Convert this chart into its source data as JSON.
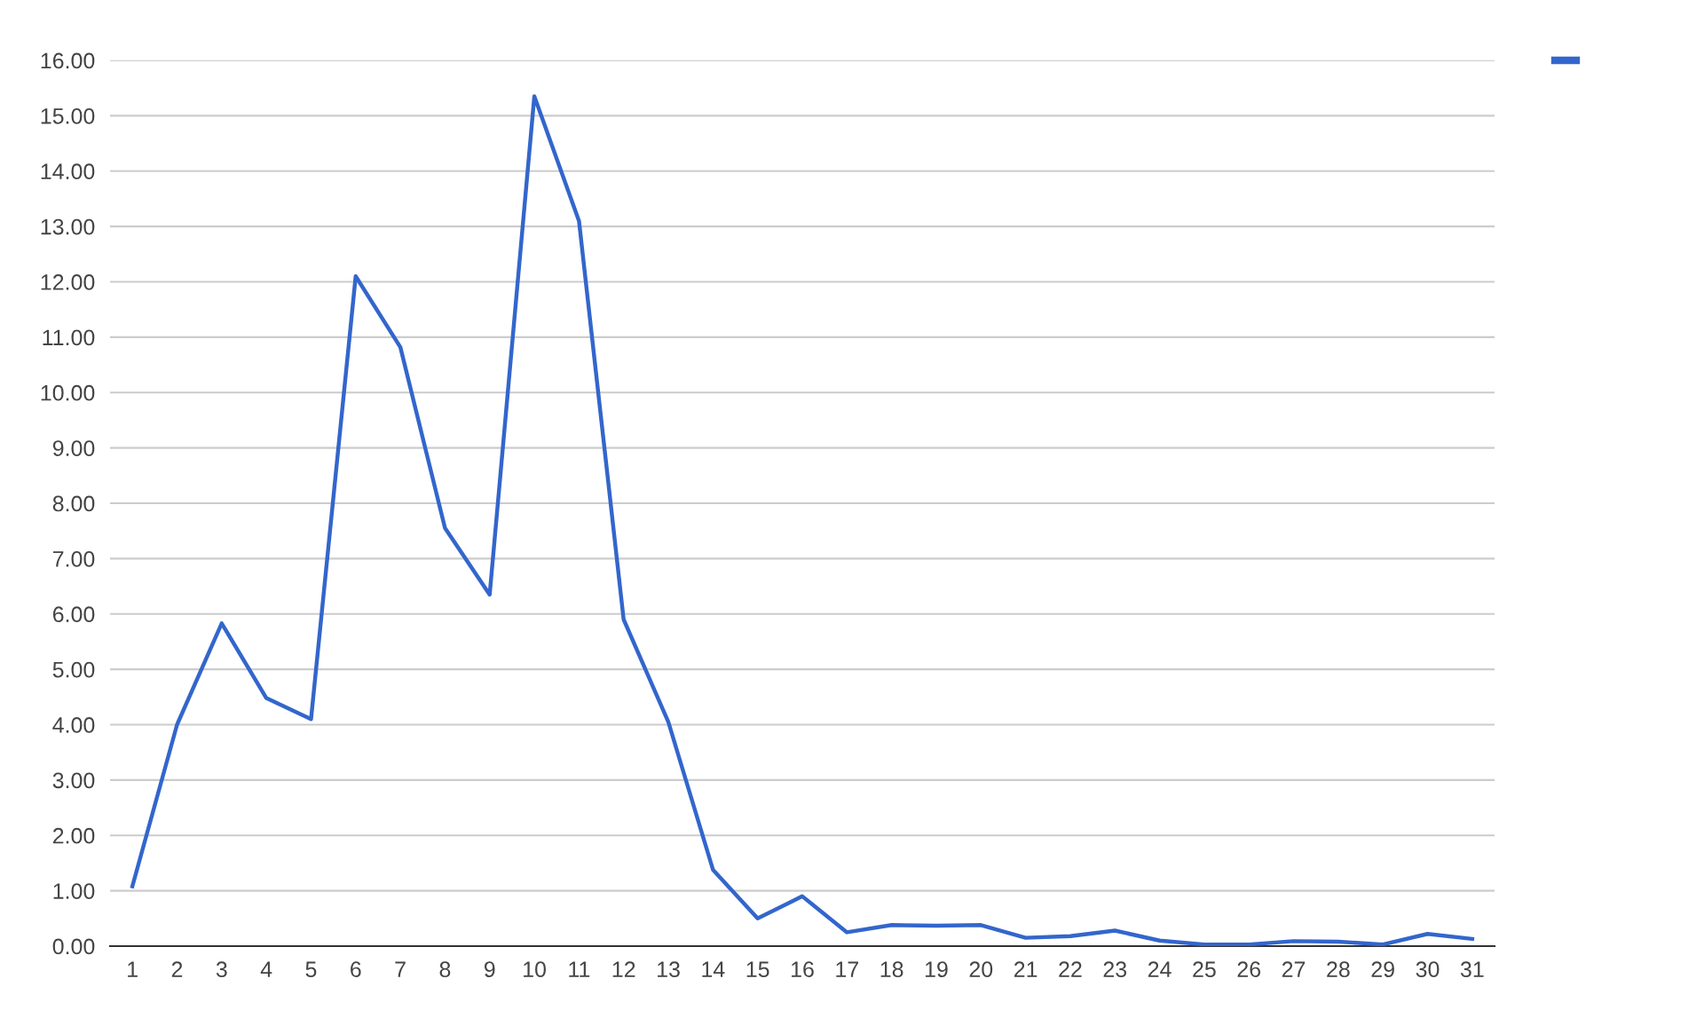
{
  "chart_data": {
    "type": "line",
    "categories": [
      "1",
      "2",
      "3",
      "4",
      "5",
      "6",
      "7",
      "8",
      "9",
      "10",
      "11",
      "12",
      "13",
      "14",
      "15",
      "16",
      "17",
      "18",
      "19",
      "20",
      "21",
      "22",
      "23",
      "24",
      "25",
      "26",
      "27",
      "28",
      "29",
      "30",
      "31"
    ],
    "series": [
      {
        "color": "#3366cc",
        "values": [
          1.08,
          4.0,
          5.83,
          4.48,
          4.1,
          12.1,
          10.82,
          7.55,
          6.35,
          15.35,
          13.1,
          5.9,
          4.05,
          1.38,
          0.5,
          0.9,
          0.25,
          0.38,
          0.37,
          0.38,
          0.15,
          0.18,
          0.28,
          0.1,
          0.03,
          0.03,
          0.09,
          0.08,
          0.03,
          0.22,
          0.13
        ]
      }
    ],
    "ylim": [
      0,
      16
    ],
    "yticks": [
      {
        "value": 0,
        "label": "0.00"
      },
      {
        "value": 1,
        "label": "1.00"
      },
      {
        "value": 2,
        "label": "2.00"
      },
      {
        "value": 3,
        "label": "3.00"
      },
      {
        "value": 4,
        "label": "4.00"
      },
      {
        "value": 5,
        "label": "5.00"
      },
      {
        "value": 6,
        "label": "6.00"
      },
      {
        "value": 7,
        "label": "7.00"
      },
      {
        "value": 8,
        "label": "8.00"
      },
      {
        "value": 9,
        "label": "9.00"
      },
      {
        "value": 10,
        "label": "10.00"
      },
      {
        "value": 11,
        "label": "11.00"
      },
      {
        "value": 12,
        "label": "12.00"
      },
      {
        "value": 13,
        "label": "13.00"
      },
      {
        "value": 14,
        "label": "14.00"
      },
      {
        "value": 15,
        "label": "15.00"
      },
      {
        "value": 16,
        "label": "16.00"
      }
    ],
    "grid": "y"
  }
}
